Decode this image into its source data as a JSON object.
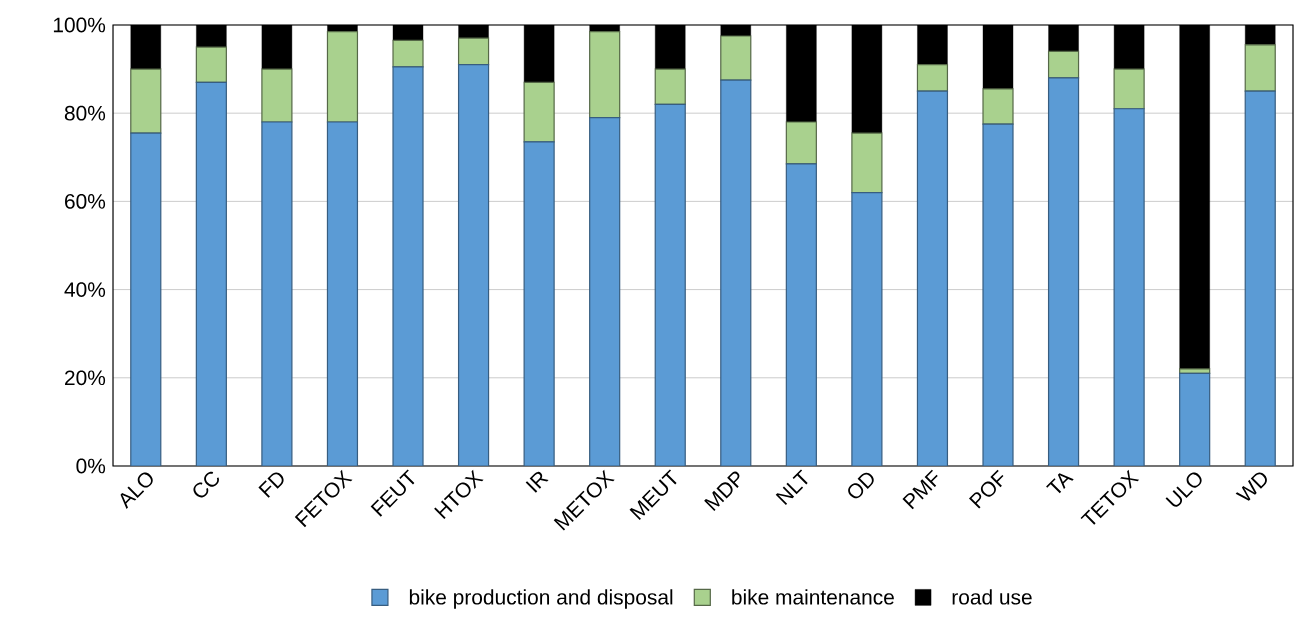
{
  "chart_data": {
    "type": "bar",
    "stacked": true,
    "categories": [
      "ALO",
      "CC",
      "FD",
      "FETOX",
      "FEUT",
      "HTOX",
      "IR",
      "METOX",
      "MEUT",
      "MDP",
      "NLT",
      "OD",
      "PMF",
      "POF",
      "TA",
      "TETOX",
      "ULO",
      "WD"
    ],
    "series": [
      {
        "name": "bike production and disposal",
        "color": "#5b9bd5",
        "values": [
          75.5,
          87,
          78,
          78,
          90.5,
          91,
          73.5,
          79,
          82,
          87.5,
          68.5,
          62,
          85,
          77.5,
          88,
          81,
          21,
          85
        ]
      },
      {
        "name": "bike maintenance",
        "color": "#a9d18e",
        "values": [
          14.5,
          8,
          12,
          20.5,
          6,
          6,
          13.5,
          19.5,
          8,
          10,
          9.5,
          13.5,
          6,
          8,
          6,
          9,
          1,
          10.5
        ]
      },
      {
        "name": "road use",
        "color": "#000000",
        "values": [
          10,
          5,
          10,
          1.5,
          3.5,
          3,
          13,
          1.5,
          10,
          2.5,
          22,
          24.5,
          9,
          14.5,
          6,
          10,
          78,
          4.5
        ]
      }
    ],
    "ylim": [
      0,
      100
    ],
    "yticks": [
      {
        "value": 0,
        "label": "0%"
      },
      {
        "value": 20,
        "label": "20%"
      },
      {
        "value": 40,
        "label": "40%"
      },
      {
        "value": 60,
        "label": "60%"
      },
      {
        "value": 80,
        "label": "80%"
      },
      {
        "value": 100,
        "label": "100%"
      }
    ],
    "grid": "y",
    "legend": "bottom"
  }
}
